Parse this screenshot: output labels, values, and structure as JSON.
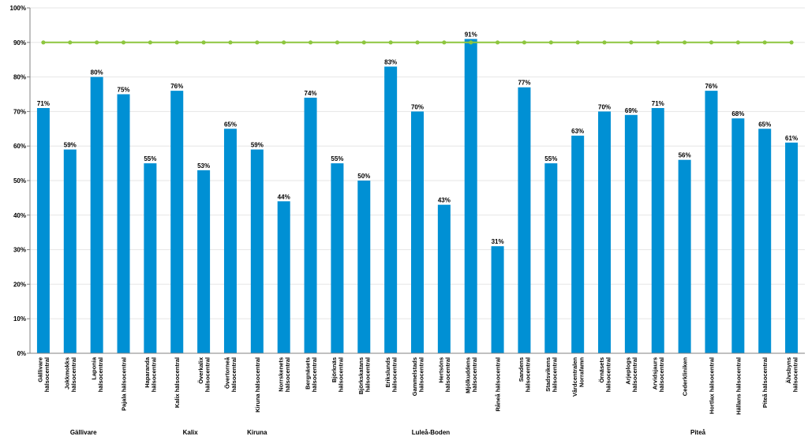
{
  "colors": {
    "bar": "#0090d4",
    "target_line": "#8dc63f",
    "grid": "#e6e6e6",
    "axis": "#808080",
    "text": "#000000"
  },
  "chart_data": {
    "type": "bar",
    "title": "",
    "xlabel": "",
    "ylabel": "",
    "ylim": [
      0,
      100
    ],
    "yticks": [
      "0%",
      "10%",
      "20%",
      "30%",
      "40%",
      "50%",
      "60%",
      "70%",
      "80%",
      "90%",
      "100%"
    ],
    "grid": true,
    "legend": "none",
    "categories": [
      [
        "Gällivare",
        "hälsocentral"
      ],
      [
        "Jokkmokks",
        "hälsocentral"
      ],
      [
        "Laponia",
        "hälsocentral"
      ],
      [
        "Pajala hälsocentral"
      ],
      [
        "Haparanda",
        "hälsocentral"
      ],
      [
        "Kalix hälsocentral"
      ],
      [
        "Överkalix",
        "hälsocentral"
      ],
      [
        "Övertorneå",
        "hälsocentral"
      ],
      [
        "Kiruna hälsocentral"
      ],
      [
        "Norrskenets",
        "hälsocentral"
      ],
      [
        "Bergnäsets",
        "hälsocentral"
      ],
      [
        "Björknäs",
        "hälsocentral"
      ],
      [
        "Björkskatans",
        "hälsocentral"
      ],
      [
        "Erikslunds",
        "hälsocentral"
      ],
      [
        "Gammelstads",
        "hälsocentral"
      ],
      [
        "Hertsöns",
        "hälsocentral"
      ],
      [
        "Mjölkuddens",
        "hälsocentral"
      ],
      [
        "Råneå hälsocentral"
      ],
      [
        "Sandens",
        "hälsocentral"
      ],
      [
        "Stadsvikens",
        "hälsocentral"
      ],
      [
        "Vårdcentralen",
        "Norrafamn"
      ],
      [
        "Örnäsets",
        "hälsocentral"
      ],
      [
        "Arjeplogs",
        "hälsocentral"
      ],
      [
        "Arvidsjaurs",
        "hälsocentral"
      ],
      [
        "Cederkliniken"
      ],
      [
        "Hortlax hälsocentral"
      ],
      [
        "Hällans hälsocentral"
      ],
      [
        "Piteå hälsocentral"
      ],
      [
        "Älvsbyns",
        "hälsocentral"
      ]
    ],
    "values": [
      71,
      59,
      80,
      75,
      55,
      76,
      53,
      65,
      59,
      44,
      74,
      55,
      50,
      83,
      70,
      43,
      91,
      31,
      77,
      55,
      63,
      70,
      69,
      71,
      56,
      76,
      68,
      65,
      61
    ],
    "value_labels": [
      "71%",
      "59%",
      "80%",
      "75%",
      "55%",
      "76%",
      "53%",
      "65%",
      "59%",
      "44%",
      "74%",
      "55%",
      "50%",
      "83%",
      "70%",
      "43%",
      "91%",
      "31%",
      "77%",
      "55%",
      "63%",
      "70%",
      "69%",
      "71%",
      "56%",
      "76%",
      "68%",
      "65%",
      "61%"
    ],
    "target": 90,
    "groups": [
      {
        "label": "Gällivare",
        "start": 0,
        "end": 3
      },
      {
        "label": "Kalix",
        "start": 4,
        "end": 7
      },
      {
        "label": "Kiruna",
        "start": 8,
        "end": 8
      },
      {
        "label": "Luleå-Boden",
        "start": 9,
        "end": 20
      },
      {
        "label": "Piteå",
        "start": 21,
        "end": 28
      }
    ]
  }
}
